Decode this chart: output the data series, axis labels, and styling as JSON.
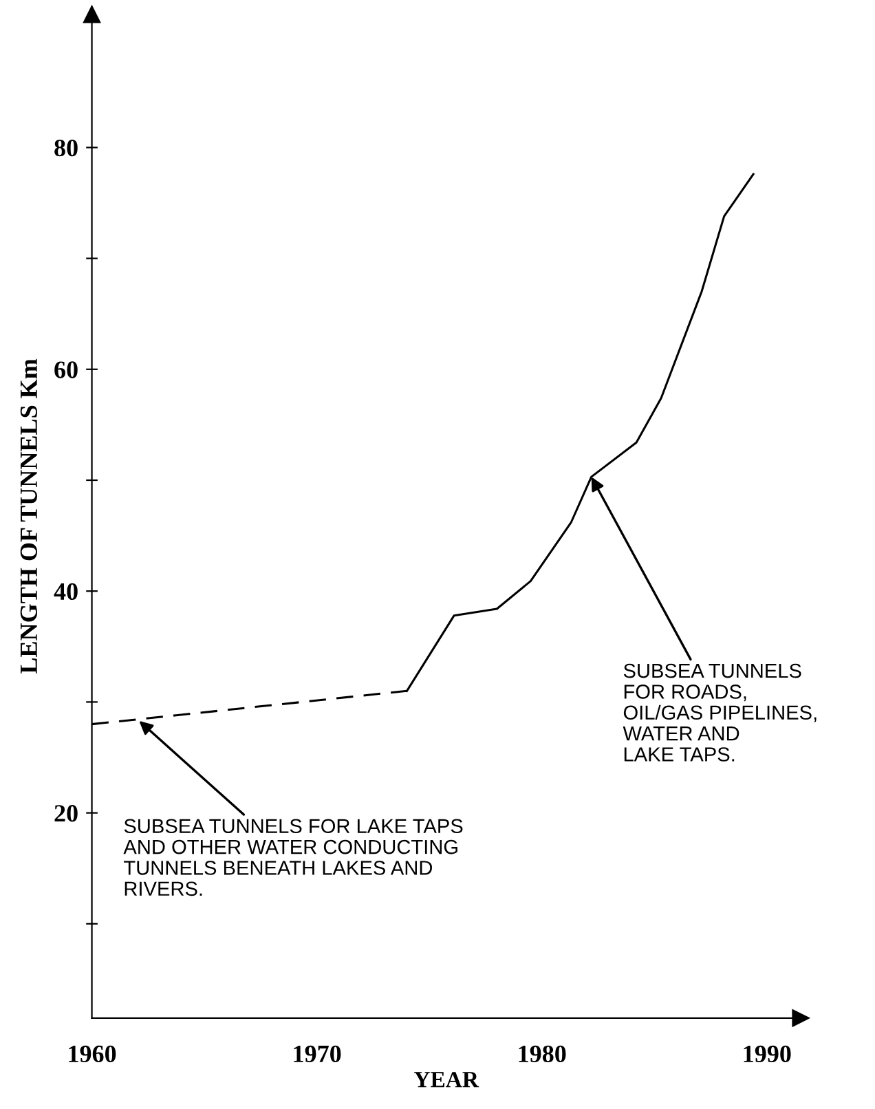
{
  "chart_data": {
    "type": "line",
    "xlabel": "YEAR",
    "ylabel": "LENGTH OF TUNNELS Km",
    "series": [
      {
        "color": "#000000",
        "line_style": "dashed",
        "x": [
          1960,
          1974
        ],
        "values": [
          28,
          31
        ]
      },
      {
        "color": "#000000",
        "line_style": "solid",
        "x": [
          1974,
          1976.1,
          1978,
          1979.5,
          1981.3,
          1982.2,
          1984.2,
          1985.3,
          1987.1,
          1988.1,
          1989.4
        ],
        "values": [
          31,
          37.8,
          38.4,
          40.9,
          46.2,
          50.3,
          53.4,
          57.4,
          67.0,
          73.8,
          77.6
        ]
      }
    ],
    "annotations": [
      {
        "text": "SUBSEA TUNNELS FOR LAKE TAPS\nAND OTHER WATER CONDUCTING\nTUNNELS BENEATH LAKES AND\nRIVERS.",
        "x": 1962.1,
        "y": 28.3
      },
      {
        "text": "SUBSEA TUNNELS\nFOR ROADS,\nOIL/GAS PIPELINES,\nWATER AND\nLAKE TAPS.",
        "x": 1982.2,
        "y": 50.3
      }
    ],
    "xlim": [
      1960,
      1991.5
    ],
    "ylim": [
      1.5,
      92
    ],
    "xticks": [
      1960,
      1970,
      1980,
      1990
    ],
    "yticks": [
      {
        "value": 10,
        "label": null
      },
      20,
      {
        "value": 30,
        "label": null
      },
      40,
      {
        "value": 50,
        "label": null
      },
      60,
      {
        "value": 70,
        "label": null
      },
      80
    ],
    "grid": false,
    "marker": "none"
  }
}
